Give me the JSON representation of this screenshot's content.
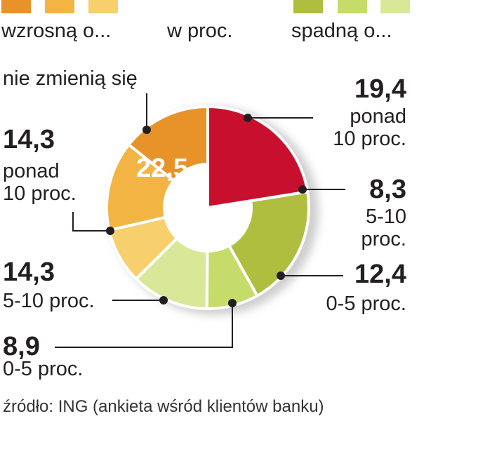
{
  "legend": {
    "increase_label": "wzrosną o...",
    "unit_label": "w proc.",
    "decrease_label": "spadną o...",
    "increase_colors": [
      "#e8922a",
      "#f2b543",
      "#f7cf6d"
    ],
    "decrease_colors": [
      "#b0be3f",
      "#c6dc6a",
      "#d9e898"
    ]
  },
  "labels": {
    "unchanged": "nie zmienią się",
    "center_value": "22,5",
    "inc_10_value": "14,3",
    "inc_10_text": "ponad\n10 proc.",
    "inc_5_10_value": "14,3",
    "inc_5_10_text": "5-10 proc.",
    "inc_0_5_value": "8,9",
    "inc_0_5_text": "0-5 proc.",
    "dec_10_value": "19,4",
    "dec_10_text": "ponad\n10 proc.",
    "dec_5_10_value": "8,3",
    "dec_5_10_text": "5-10\nproc.",
    "dec_0_5_value": "12,4",
    "dec_0_5_text": "0-5 proc."
  },
  "source": "źródło: ING (ankieta wśród klientów banku)",
  "chart_data": {
    "type": "pie",
    "slices": [
      {
        "name": "nie zmienią się",
        "value": 22.5,
        "color": "#c8102e"
      },
      {
        "name": "spadną o ponad 10 proc.",
        "value": 19.4,
        "color": "#b0be3f"
      },
      {
        "name": "spadną o 5-10 proc.",
        "value": 8.3,
        "color": "#c6dc6a"
      },
      {
        "name": "spadną o 0-5 proc.",
        "value": 12.4,
        "color": "#d9e898"
      },
      {
        "name": "wzrosną o 0-5 proc.",
        "value": 8.9,
        "color": "#f7cf6d"
      },
      {
        "name": "wzrosną o 5-10 proc.",
        "value": 14.3,
        "color": "#f2b543"
      },
      {
        "name": "wzrosną o ponad 10 proc.",
        "value": 14.3,
        "color": "#e8922a"
      }
    ]
  }
}
